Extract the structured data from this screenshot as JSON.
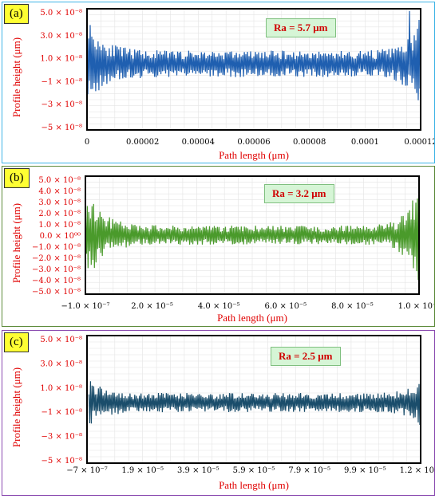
{
  "colors": {
    "a": "#1f5fb0",
    "b": "#4a9a2b",
    "c": "#1a4d6b",
    "border_a": "#3eb4e6",
    "border_b": "#5c8a3a",
    "border_c": "#8a4ab0",
    "axis_text": "#e00000"
  },
  "chart_data": [
    {
      "panel": "(a)",
      "type": "line",
      "ra_label": "Ra = 5.7 μm",
      "xlabel": "Path length (μm)",
      "ylabel": "Profile height (μm)",
      "xlim": [
        0,
        0.00012
      ],
      "ylim": [
        -5e-08,
        6e-08
      ],
      "x_ticks": [
        "0",
        "0.00002",
        "0.00004",
        "0.00006",
        "0.00008",
        "0.0001",
        "0.00012"
      ],
      "y_ticks": [
        "5.0 × 10⁻⁸",
        "3.0 × 10⁻⁸",
        "1.0 × 10⁻⁸",
        "−1 × 10⁻⁸",
        "−3 × 10⁻⁸",
        "−5 × 10⁻⁸"
      ],
      "grid": true,
      "series": [
        {
          "x_range": [
            0,
            0.00012
          ],
          "baseline": 1e-08,
          "amplitude_edge": 4.5e-08,
          "amplitude_middle": 1.2e-08,
          "peak": {
            "x": 0.000116,
            "y": 5.8e-08
          }
        }
      ]
    },
    {
      "panel": "(b)",
      "type": "line",
      "ra_label": "Ra = 3.2 μm",
      "xlabel": "Path length (μm)",
      "ylabel": "Profile height (μm)",
      "xlim": [
        -1e-07,
        0.000115
      ],
      "ylim": [
        -5e-08,
        5e-08
      ],
      "x_ticks": [
        "−1.0 × 10⁻⁷",
        "2.0 × 10⁻⁵",
        "4.0 × 10⁻⁵",
        "6.0 × 10⁻⁵",
        "8.0 × 10⁻⁵",
        "1.0 × 10⁻⁴"
      ],
      "y_ticks": [
        "5.0 × 10⁻⁸",
        "4.0 × 10⁻⁸",
        "3.0 × 10⁻⁸",
        "2.0 × 10⁻⁸",
        "1.0 × 10⁻⁸",
        "0.0 × 10⁰⁰",
        "−1.0 × 10⁻⁸",
        "−2.0 × 10⁻⁸",
        "−3.0 × 10⁻⁸",
        "−4.0 × 10⁻⁸",
        "−5.0 × 10⁻⁸"
      ],
      "grid": true,
      "series": [
        {
          "x_range": [
            0,
            0.000115
          ],
          "baseline": 0,
          "amplitude_edge": 4.5e-08,
          "amplitude_middle": 8e-09
        }
      ]
    },
    {
      "panel": "(c)",
      "type": "line",
      "ra_label": "Ra = 2.5 μm",
      "xlabel": "Path length (μm)",
      "ylabel": "Profile height (μm)",
      "xlim": [
        -7e-07,
        0.00012
      ],
      "ylim": [
        -6e-08,
        6e-08
      ],
      "x_ticks": [
        "−7 × 10⁻⁷",
        "1.9 × 10⁻⁵",
        "3.9 × 10⁻⁵",
        "5.9 × 10⁻⁵",
        "7.9 × 10⁻⁵",
        "9.9 × 10⁻⁵",
        "1.2 × 10⁻⁴"
      ],
      "y_ticks": [
        "5.0 × 10⁻⁸",
        "3.0 × 10⁻⁸",
        "1.0 × 10⁻⁸",
        "−1 × 10⁻⁸",
        "−3 × 10⁻⁸",
        "−5 × 10⁻⁸"
      ],
      "grid": true,
      "series": [
        {
          "x_range": [
            0,
            0.00012
          ],
          "baseline": -3e-09,
          "amplitude_edge": 2.2e-08,
          "amplitude_middle": 9e-09
        }
      ]
    }
  ]
}
